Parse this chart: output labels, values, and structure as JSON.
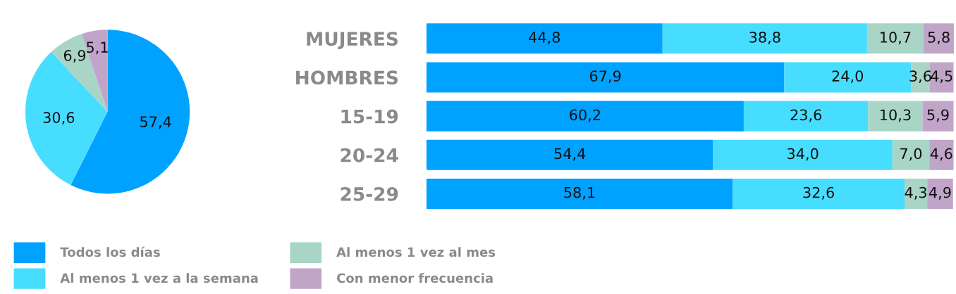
{
  "chart_data": [
    {
      "type": "pie",
      "categories": [
        "Todos los días",
        "Al menos 1 vez a la semana",
        "Al menos 1 vez al mes",
        "Con menor frecuencia"
      ],
      "values": [
        57.4,
        30.6,
        6.9,
        5.1
      ],
      "colors": [
        "#00a2ff",
        "#47ddff",
        "#a9d5c6",
        "#c1a5c9"
      ],
      "value_labels": [
        "57,4",
        "30,6",
        "6,9",
        "5,1"
      ],
      "legend": "bottom"
    },
    {
      "type": "bar",
      "orientation": "horizontal",
      "stacked": true,
      "categories": [
        "MUJERES",
        "HOMBRES",
        "15-19",
        "20-24",
        "25-29"
      ],
      "series": [
        {
          "color": "#00a2ff",
          "values": [
            44.8,
            67.9,
            60.2,
            54.4,
            58.1
          ],
          "value_labels": [
            "44,8",
            "67,9",
            "60,2",
            "54,4",
            "58,1"
          ]
        },
        {
          "color": "#47ddff",
          "values": [
            38.8,
            24.0,
            23.6,
            34.0,
            32.6
          ],
          "value_labels": [
            "38,8",
            "24,0",
            "23,6",
            "34,0",
            "32,6"
          ]
        },
        {
          "color": "#a9d5c6",
          "values": [
            10.7,
            3.6,
            10.3,
            7.0,
            4.3
          ],
          "value_labels": [
            "10,7",
            "3,6",
            "10,3",
            "7,0",
            "4,3"
          ]
        },
        {
          "color": "#c1a5c9",
          "values": [
            5.8,
            4.5,
            5.9,
            4.6,
            4.9
          ],
          "value_labels": [
            "5,8",
            "4,5",
            "5,9",
            "4,6",
            "4,9"
          ]
        }
      ]
    }
  ]
}
